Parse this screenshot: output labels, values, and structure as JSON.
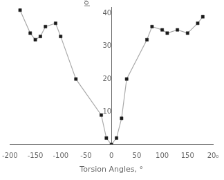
{
  "chart_data": {
    "type": "line",
    "x": [
      -180,
      -160,
      -150,
      -140,
      -130,
      -110,
      -100,
      -70,
      -20,
      -10,
      0,
      10,
      20,
      30,
      70,
      80,
      100,
      110,
      130,
      150,
      170,
      180
    ],
    "values": [
      41,
      34,
      32,
      33,
      36,
      37,
      33,
      20,
      9,
      2,
      0,
      2,
      8,
      20,
      32,
      36,
      35,
      34,
      35,
      34,
      37,
      39
    ],
    "color": "#aaaaaa",
    "colors": [
      "#1a1a1a",
      "#1a1a1a",
      "#1a1a1a",
      "#1a1a1a",
      "#1a1a1a",
      "#1a1a1a",
      "#1a1a1a",
      "#1a1a1a",
      "#1a1a1a",
      "#1a1a1a",
      "#1a1a1a",
      "#1a1a1a",
      "#1a1a1a",
      "#1a1a1a",
      "#1a1a1a",
      "#1a1a1a",
      "#1a1a1a",
      "#1a1a1a",
      "#1a1a1a",
      "#1a1a1a",
      "#1a1a1a",
      "#1a1a1a"
    ],
    "marker": "square",
    "line_style": "solid",
    "xlim": [
      -200,
      200
    ],
    "xticks": [
      -200,
      -150,
      -100,
      -50,
      0,
      50,
      100,
      150,
      {
        "value": 200,
        "label": "20₀"
      }
    ],
    "ylim": [
      0,
      42
    ],
    "yticks": [
      10,
      20,
      30,
      40
    ],
    "xlabel": "Torsion Angles, °",
    "ylabel": "Energy difference, kJ/mol",
    "grid": false
  }
}
